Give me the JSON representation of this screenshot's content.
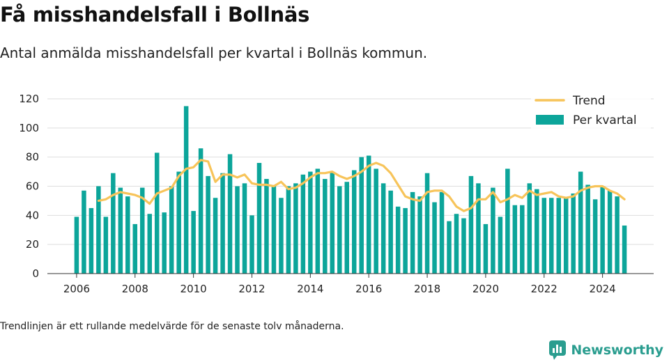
{
  "title": "Få misshandelsfall i Bollnäs",
  "subtitle": "Antal anmälda misshandelsfall per kvartal i Bollnäs kommun.",
  "footnote": "Trendlinjen är ett rullande medelvärde för de senaste tolv månaderna.",
  "brand": "Newsworthy",
  "colors": {
    "bars": "#0ca59a",
    "trend": "#f7c45a",
    "grid": "#dddddd",
    "brand": "#2a9d8f"
  },
  "icons": {
    "brand_logo": "bar-chart-speech-bubble-icon"
  },
  "chart_data": {
    "type": "bar",
    "ylim": [
      0,
      120
    ],
    "yticks": [
      0,
      20,
      40,
      60,
      80,
      100,
      120
    ],
    "xlim": [
      2005,
      2025.75
    ],
    "xticks": [
      2006,
      2008,
      2010,
      2012,
      2014,
      2016,
      2018,
      2020,
      2022,
      2024
    ],
    "legend": {
      "position": "top-right",
      "entries": [
        "Trend",
        "Per kvartal"
      ]
    },
    "series": [
      {
        "name": "Per kvartal",
        "type": "bar",
        "x": [
          2006.0,
          2006.25,
          2006.5,
          2006.75,
          2007.0,
          2007.25,
          2007.5,
          2007.75,
          2008.0,
          2008.25,
          2008.5,
          2008.75,
          2009.0,
          2009.25,
          2009.5,
          2009.75,
          2010.0,
          2010.25,
          2010.5,
          2010.75,
          2011.0,
          2011.25,
          2011.5,
          2011.75,
          2012.0,
          2012.25,
          2012.5,
          2012.75,
          2013.0,
          2013.25,
          2013.5,
          2013.75,
          2014.0,
          2014.25,
          2014.5,
          2014.75,
          2015.0,
          2015.25,
          2015.5,
          2015.75,
          2016.0,
          2016.25,
          2016.5,
          2016.75,
          2017.0,
          2017.25,
          2017.5,
          2017.75,
          2018.0,
          2018.25,
          2018.5,
          2018.75,
          2019.0,
          2019.25,
          2019.5,
          2019.75,
          2020.0,
          2020.25,
          2020.5,
          2020.75,
          2021.0,
          2021.25,
          2021.5,
          2021.75,
          2022.0,
          2022.25,
          2022.5,
          2022.75,
          2023.0,
          2023.25,
          2023.5,
          2023.75,
          2024.0,
          2024.25,
          2024.5,
          2024.75
        ],
        "values": [
          39,
          57,
          45,
          60,
          39,
          69,
          59,
          53,
          34,
          59,
          41,
          83,
          42,
          60,
          70,
          115,
          43,
          86,
          67,
          52,
          69,
          82,
          60,
          62,
          40,
          76,
          65,
          60,
          52,
          60,
          62,
          68,
          70,
          72,
          65,
          70,
          60,
          63,
          71,
          80,
          81,
          72,
          62,
          57,
          46,
          45,
          56,
          53,
          69,
          49,
          56,
          36,
          41,
          38,
          67,
          62,
          34,
          59,
          39,
          72,
          47,
          47,
          62,
          58,
          52,
          52,
          52,
          52,
          55,
          70,
          61,
          51,
          60,
          57,
          53,
          33
        ]
      },
      {
        "name": "Trend",
        "type": "line",
        "x": [
          2006.75,
          2007.0,
          2007.25,
          2007.5,
          2007.75,
          2008.0,
          2008.25,
          2008.5,
          2008.75,
          2009.0,
          2009.25,
          2009.5,
          2009.75,
          2010.0,
          2010.25,
          2010.5,
          2010.75,
          2011.0,
          2011.25,
          2011.5,
          2011.75,
          2012.0,
          2012.25,
          2012.5,
          2012.75,
          2013.0,
          2013.25,
          2013.5,
          2013.75,
          2014.0,
          2014.25,
          2014.5,
          2014.75,
          2015.0,
          2015.25,
          2015.5,
          2015.75,
          2016.0,
          2016.25,
          2016.5,
          2016.75,
          2017.0,
          2017.25,
          2017.5,
          2017.75,
          2018.0,
          2018.25,
          2018.5,
          2018.75,
          2019.0,
          2019.25,
          2019.5,
          2019.75,
          2020.0,
          2020.25,
          2020.5,
          2020.75,
          2021.0,
          2021.25,
          2021.5,
          2021.75,
          2022.0,
          2022.25,
          2022.5,
          2022.75,
          2023.0,
          2023.25,
          2023.5,
          2023.75,
          2024.0,
          2024.25,
          2024.5,
          2024.75
        ],
        "values": [
          50,
          51,
          54,
          56,
          55,
          54,
          52,
          48,
          55,
          57,
          59,
          67,
          72,
          73,
          78,
          77,
          63,
          68,
          68,
          66,
          68,
          62,
          61,
          61,
          60,
          63,
          58,
          59,
          62,
          66,
          69,
          69,
          70,
          67,
          65,
          67,
          70,
          74,
          76,
          74,
          69,
          61,
          53,
          51,
          50,
          56,
          57,
          57,
          53,
          46,
          43,
          45,
          51,
          51,
          56,
          49,
          51,
          54,
          52,
          57,
          54,
          55,
          56,
          53,
          52,
          53,
          57,
          59,
          60,
          60,
          57,
          55,
          51
        ]
      }
    ]
  }
}
